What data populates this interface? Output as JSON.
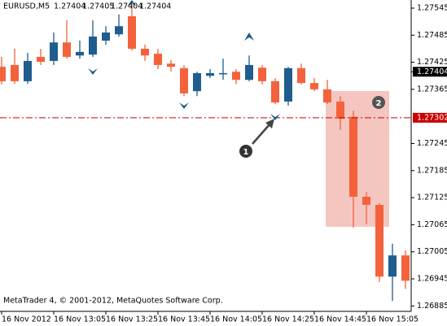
{
  "chart_data": {
    "type": "candlestick",
    "symbol": "EURUSD,M5",
    "header_prices": [
      1.27404,
      1.27405,
      1.27404,
      1.27404
    ],
    "footer": "MetaTrader 4, © 2001-2012, MetaQuotes Software Corp.",
    "categories": [
      "16 Nov 2012",
      null,
      null,
      null,
      "16 Nov 13:05",
      null,
      null,
      null,
      "16 Nov 13:25",
      null,
      null,
      null,
      "16 Nov 13:45",
      null,
      null,
      null,
      "16 Nov 14:05",
      null,
      null,
      null,
      "16 Nov 14:25",
      null,
      null,
      null,
      "16 Nov 14:45",
      null,
      null,
      null,
      "16 Nov 15:05",
      null,
      null,
      null
    ],
    "up_color": "#1f5d8e",
    "down_color": "#f4623c",
    "series": [
      {
        "open": [
          1.27415,
          1.27419,
          1.27383,
          1.27437,
          1.27428,
          1.27469,
          1.2744,
          1.27442,
          1.27473,
          1.27487,
          1.27527,
          1.27455,
          1.27444,
          1.27422,
          1.27412,
          1.27361,
          1.27395,
          1.27399,
          1.27404,
          1.27386,
          1.27413,
          1.27383,
          1.27338,
          1.27412,
          1.27379,
          1.27365,
          1.27338,
          1.27304,
          1.27127,
          1.27109,
          1.2695,
          1.26997
        ],
        "high": [
          1.27437,
          1.27455,
          1.27446,
          1.27455,
          1.27491,
          1.27518,
          1.27473,
          1.27518,
          1.27505,
          1.27531,
          1.27554,
          1.27464,
          1.27455,
          1.2743,
          1.27419,
          1.27404,
          1.2741,
          1.27433,
          1.2741,
          1.2744,
          1.27419,
          1.2739,
          1.27415,
          1.27422,
          1.2739,
          1.27386,
          1.2735,
          1.27318,
          1.27138,
          1.27113,
          1.27023,
          1.27008
        ],
        "low": [
          1.27376,
          1.27377,
          1.27377,
          1.27419,
          1.27419,
          1.27433,
          1.27433,
          1.27437,
          1.27464,
          1.27482,
          1.27451,
          1.27428,
          1.2741,
          1.27404,
          1.2735,
          1.2735,
          1.2739,
          1.27386,
          1.27376,
          1.27383,
          1.27376,
          1.27332,
          1.27329,
          1.27376,
          1.27361,
          1.27332,
          1.27275,
          1.27059,
          1.27066,
          1.26938,
          1.26896,
          1.26923
        ],
        "close": [
          1.27383,
          1.27383,
          1.27428,
          1.27426,
          1.27469,
          1.27437,
          1.27448,
          1.27482,
          1.27491,
          1.27505,
          1.27455,
          1.2744,
          1.27419,
          1.27415,
          1.27356,
          1.27401,
          1.27401,
          1.27401,
          1.27386,
          1.27419,
          1.27383,
          1.27336,
          1.27412,
          1.27379,
          1.27365,
          1.27336,
          1.273,
          1.27127,
          1.27109,
          1.2695,
          1.26997,
          1.26941
        ]
      }
    ],
    "ylim": [
      1.26873,
      1.27563
    ],
    "yticks": [
      1.27545,
      1.27485,
      1.27425,
      1.27365,
      1.27245,
      1.27185,
      1.27125,
      1.27065,
      1.27005,
      1.26945,
      1.26885
    ],
    "bid": {
      "value": 1.27404,
      "color": "#000000"
    },
    "level": {
      "value": 1.27302,
      "color": "#cc0000"
    },
    "annotations": [
      "1",
      "2"
    ]
  }
}
